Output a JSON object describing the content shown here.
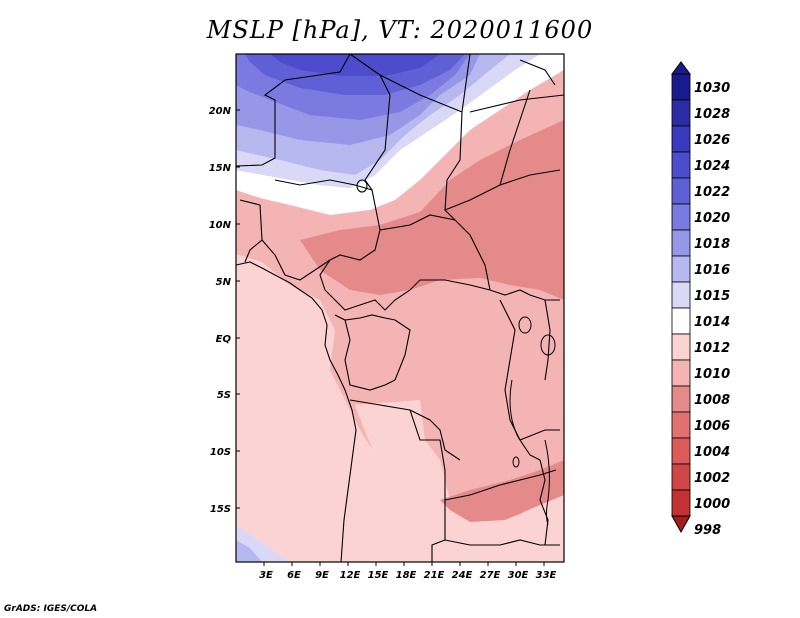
{
  "title": "MSLP [hPa], VT: 2020011600",
  "credit": "GrADS: IGES/COLA",
  "lat_ticks": [
    "20N",
    "15N",
    "10N",
    "5N",
    "EQ",
    "5S",
    "10S",
    "15S"
  ],
  "lon_ticks": [
    "3E",
    "6E",
    "9E",
    "12E",
    "15E",
    "18E",
    "21E",
    "24E",
    "27E",
    "30E",
    "33E"
  ],
  "colorbar": {
    "levels": [
      "1030",
      "1028",
      "1026",
      "1024",
      "1022",
      "1020",
      "1018",
      "1016",
      "1015",
      "1014",
      "1012",
      "1010",
      "1008",
      "1006",
      "1004",
      "1002",
      "1000",
      "998"
    ],
    "colors": [
      "#1a1a8f",
      "#2b2ba6",
      "#3a3abf",
      "#4c4ccc",
      "#6060d6",
      "#7a7ae0",
      "#9797e8",
      "#b8b8f0",
      "#d9d9f7",
      "#ffffff",
      "#fbd3d3",
      "#f5b4b4",
      "#e58a8a",
      "#e37070",
      "#dc5a5a",
      "#d04545",
      "#c23232",
      "#a31d1d"
    ]
  },
  "map_colors": {
    "p1016": "#b8b8f0",
    "p1018": "#9797e8",
    "p1020": "#7a7ae0",
    "p1022": "#6060d6",
    "p1024": "#4c4ccc",
    "p1014": "#ffffff",
    "p1015": "#d9d9f7",
    "p1012": "#fbd3d3",
    "p1010": "#f5b4b4",
    "p1008": "#e58a8a",
    "border": "#000000"
  }
}
